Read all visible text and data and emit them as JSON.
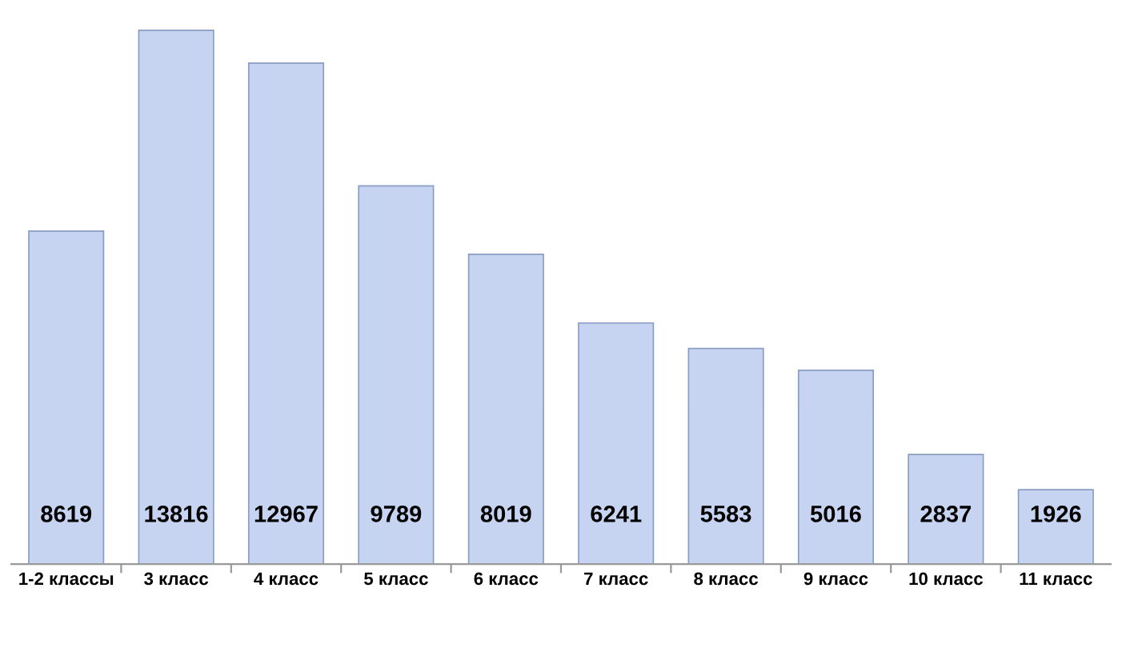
{
  "chart_data": {
    "type": "bar",
    "categories": [
      "1-2 классы",
      "3 класс",
      "4 класс",
      "5 класс",
      "6 класс",
      "7 класс",
      "8 класс",
      "9 класс",
      "10 класс",
      "11 класс"
    ],
    "values": [
      8619,
      13816,
      12967,
      9789,
      8019,
      6241,
      5583,
      5016,
      2837,
      1926
    ],
    "color": "#c6d4f2",
    "data_labels": true,
    "grid": false,
    "legend": false
  }
}
